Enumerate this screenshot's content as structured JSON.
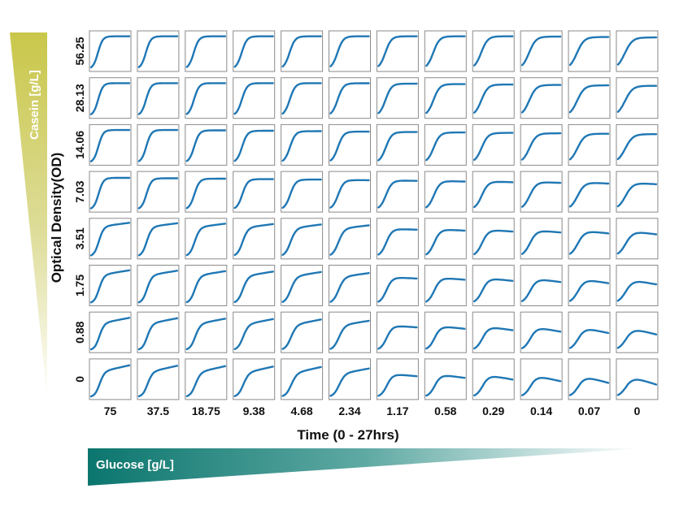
{
  "chart_data": {
    "type": "line",
    "layout": "small-multiples grid",
    "xlabel": "Time (0 - 27hrs)",
    "ylabel": "Optical Density(OD)",
    "rows_variable": "Casein [g/L]",
    "columns_variable": "Glucose [g/L]",
    "row_labels": [
      "56.25",
      "28.13",
      "14.06",
      "7.03",
      "3.51",
      "1.75",
      "0.88",
      "0"
    ],
    "column_labels": [
      "75",
      "37.5",
      "18.75",
      "9.38",
      "4.68",
      "2.34",
      "1.17",
      "0.58",
      "0.29",
      "0.14",
      "0.07",
      "0"
    ],
    "x_range_hours": [
      0,
      27
    ],
    "series_color": "#1f77b4",
    "grid": false
  },
  "wedges": {
    "casein_label": "Casein [g/L]",
    "glucose_label": "Glucose [g/L]",
    "casein_color": "#c8c850",
    "glucose_color": "#0f7b72"
  }
}
